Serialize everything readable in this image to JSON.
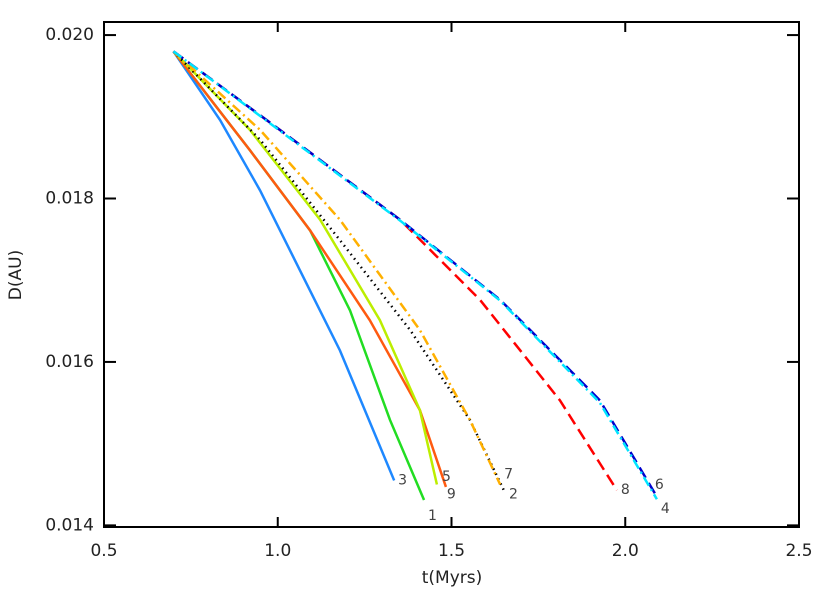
{
  "chart_data": {
    "type": "line",
    "x_label": "t(Myrs)",
    "y_label": "D(AU)",
    "xlim": [
      0.5,
      2.5
    ],
    "ylim": [
      0.01398,
      0.02016
    ],
    "xticks": [
      0.5,
      {
        "value": 1.0,
        "label": "1.0"
      },
      1.5,
      {
        "value": 2.0,
        "label": "2.0"
      },
      2.5
    ],
    "yticks": [
      {
        "value": 0.014,
        "label": "0.014"
      },
      {
        "value": 0.016,
        "label": "0.016"
      },
      {
        "value": 0.018,
        "label": "0.018"
      },
      {
        "value": 0.02,
        "label": "0.020"
      }
    ],
    "series": [
      {
        "name": "3",
        "color": "#1e88ff",
        "style": "solid",
        "x": [
          0.7,
          0.834,
          0.949,
          1.064,
          1.179,
          1.335
        ],
        "values": [
          0.0198,
          0.01896,
          0.0181,
          0.01712,
          0.01614,
          0.01455
        ]
      },
      {
        "name": "1",
        "color": "#22dd22",
        "style": "solid",
        "x": [
          0.7,
          0.92,
          1.093,
          1.208,
          1.323,
          1.421
        ],
        "values": [
          0.0198,
          0.01859,
          0.01761,
          0.01663,
          0.01529,
          0.01431
        ]
      },
      {
        "name": "5",
        "color": "#ff5a10",
        "style": "solid",
        "x": [
          0.7,
          0.92,
          1.093,
          1.265,
          1.409,
          1.484
        ],
        "values": [
          0.0198,
          0.01859,
          0.01761,
          0.01651,
          0.01541,
          0.01447
        ]
      },
      {
        "name": "9",
        "color": "#bcee00",
        "style": "solid",
        "x": [
          0.7,
          0.92,
          1.122,
          1.294,
          1.409,
          1.458
        ],
        "values": [
          0.0198,
          0.01884,
          0.01774,
          0.01651,
          0.01541,
          0.0145
        ]
      },
      {
        "name": "2",
        "color": "#000000",
        "style": "dotted",
        "x": [
          0.7,
          0.949,
          1.179,
          1.381,
          1.553,
          1.654
        ],
        "values": [
          0.0198,
          0.01872,
          0.01749,
          0.01639,
          0.01529,
          0.0144
        ]
      },
      {
        "name": "7",
        "color": "#ffb000",
        "style": "dashdot",
        "x": [
          0.7,
          0.949,
          1.179,
          1.409,
          1.553,
          1.64
        ],
        "values": [
          0.0198,
          0.01884,
          0.01774,
          0.01639,
          0.01529,
          0.0145
        ]
      },
      {
        "name": "8",
        "color": "#ff0000",
        "style": "dashed",
        "x": [
          0.7,
          1.006,
          1.352,
          1.582,
          1.812,
          1.976
        ],
        "values": [
          0.0198,
          0.01884,
          0.01774,
          0.01676,
          0.01553,
          0.01443
        ]
      },
      {
        "name": "6",
        "color": "#0000cc",
        "style": "dashed",
        "x": [
          0.7,
          1.006,
          1.352,
          1.64,
          1.927,
          2.091
        ],
        "values": [
          0.0198,
          0.01884,
          0.01774,
          0.01676,
          0.01553,
          0.01435
        ]
      },
      {
        "name": "4",
        "color": "#00e5ff",
        "style": "dashdot",
        "x": [
          0.7,
          1.006,
          1.352,
          1.64,
          1.927,
          2.091
        ],
        "values": [
          0.0198,
          0.01883,
          0.01773,
          0.01675,
          0.0155,
          0.01432
        ]
      }
    ]
  }
}
